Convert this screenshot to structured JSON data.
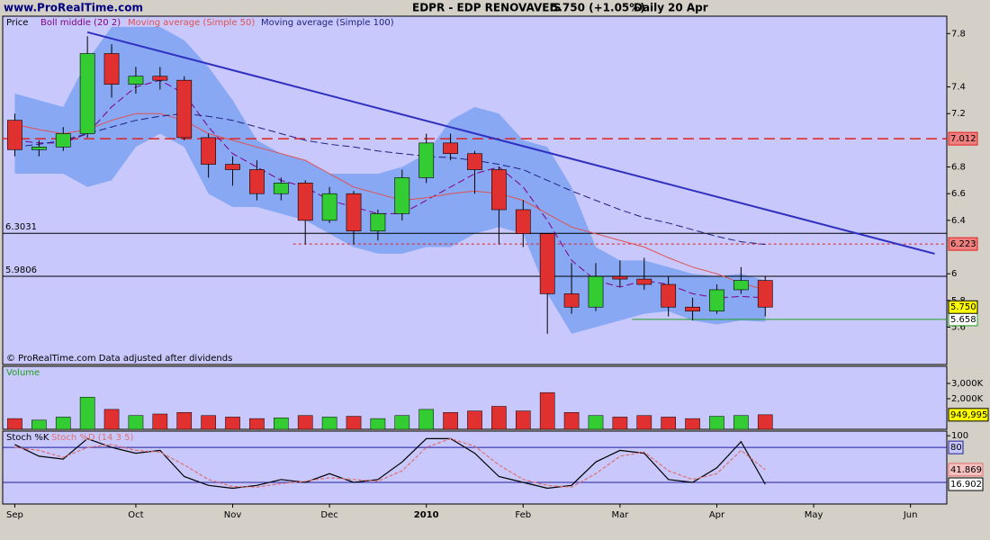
{
  "chart_data": {
    "type": "candlestick",
    "site": "www.ProRealTime.com",
    "title": "EDPR - EDP RENOVAVEIS",
    "quote": "5.750 (+1.05%)",
    "period": "Daily",
    "date": "20 Apr",
    "footnote": "© ProRealTime.com  Data adjusted after dividends",
    "categories": [
      "Sep",
      null,
      null,
      null,
      null,
      "Oct",
      null,
      null,
      null,
      "Nov",
      null,
      null,
      null,
      "Dec",
      null,
      null,
      null,
      "2010",
      null,
      null,
      null,
      "Feb",
      null,
      null,
      null,
      "Mar",
      null,
      null,
      null,
      "Apr",
      null,
      null,
      null,
      "May",
      null,
      null,
      null,
      "Jun",
      null
    ],
    "price": {
      "label": "Price",
      "up_color": "#33cc33",
      "down_color": "#e03030",
      "ylim": [
        5.32,
        7.93
      ],
      "yticks": [
        5.6,
        5.8,
        6,
        6.4,
        6.6,
        6.8,
        7.2,
        7.4,
        7.8
      ],
      "open": [
        7.15,
        6.93,
        6.95,
        7.05,
        7.65,
        7.42,
        7.48,
        7.45,
        7.02,
        6.82,
        6.78,
        6.6,
        6.68,
        6.4,
        6.6,
        6.32,
        6.45,
        6.72,
        6.98,
        6.9,
        6.78,
        6.48,
        6.3,
        5.85,
        5.75,
        5.98,
        5.96,
        5.92,
        5.75,
        5.72,
        5.88,
        5.95,
        null,
        null,
        null,
        null,
        null,
        null,
        null
      ],
      "high": [
        7.2,
        7.0,
        7.1,
        7.78,
        7.72,
        7.55,
        7.55,
        7.48,
        7.05,
        6.88,
        6.85,
        6.72,
        6.7,
        6.65,
        6.62,
        6.48,
        6.78,
        7.05,
        7.05,
        6.92,
        6.8,
        6.55,
        6.3,
        6.08,
        6.08,
        6.1,
        6.12,
        5.98,
        5.82,
        5.92,
        6.05,
        5.98,
        null,
        null,
        null,
        null,
        null,
        null,
        null
      ],
      "low": [
        6.88,
        6.88,
        6.92,
        7.02,
        7.32,
        7.35,
        7.38,
        7.0,
        6.72,
        6.66,
        6.55,
        6.55,
        6.22,
        6.38,
        6.22,
        6.25,
        6.4,
        6.68,
        6.85,
        6.6,
        6.22,
        6.2,
        5.55,
        5.7,
        5.72,
        5.9,
        5.88,
        5.68,
        5.65,
        5.7,
        5.85,
        5.68,
        null,
        null,
        null,
        null,
        null,
        null,
        null
      ],
      "close": [
        6.93,
        6.95,
        7.05,
        7.65,
        7.42,
        7.48,
        7.45,
        7.02,
        6.82,
        6.78,
        6.6,
        6.68,
        6.4,
        6.6,
        6.32,
        6.45,
        6.72,
        6.98,
        6.9,
        6.78,
        6.48,
        6.3,
        5.85,
        5.75,
        5.98,
        5.96,
        5.92,
        5.75,
        5.72,
        5.88,
        5.95,
        5.75,
        null,
        null,
        null,
        null,
        null,
        null,
        null
      ],
      "last_close": {
        "value": 5.75,
        "label": "5.750"
      },
      "band": {
        "color": "#88a8f4",
        "upper": [
          7.35,
          7.3,
          7.25,
          7.6,
          7.85,
          7.85,
          7.85,
          7.75,
          7.55,
          7.3,
          7.0,
          6.9,
          6.85,
          6.75,
          6.75,
          6.75,
          6.8,
          6.9,
          7.15,
          7.25,
          7.2,
          7.0,
          6.95,
          6.65,
          6.2,
          6.1,
          6.1,
          6.05,
          6.0,
          5.98,
          6.0,
          5.95,
          null,
          null,
          null,
          null,
          null,
          null,
          null
        ],
        "lower": [
          6.75,
          6.75,
          6.75,
          6.65,
          6.7,
          6.95,
          7.05,
          6.95,
          6.6,
          6.5,
          6.5,
          6.45,
          6.4,
          6.3,
          6.2,
          6.15,
          6.15,
          6.2,
          6.2,
          6.3,
          6.35,
          6.3,
          5.85,
          5.55,
          5.6,
          5.65,
          5.7,
          5.72,
          5.65,
          5.62,
          5.65,
          5.64,
          null,
          null,
          null,
          null,
          null,
          null,
          null
        ]
      },
      "overlays": [
        {
          "name": "Boll middle (20 2)",
          "color": "#800080",
          "dash": true,
          "values": [
            7.0,
            6.98,
            6.98,
            7.05,
            7.25,
            7.4,
            7.45,
            7.35,
            7.1,
            6.9,
            6.8,
            6.7,
            6.65,
            6.55,
            6.5,
            6.45,
            6.45,
            6.55,
            6.65,
            6.75,
            6.8,
            6.65,
            6.4,
            6.1,
            5.95,
            5.9,
            5.95,
            5.92,
            5.85,
            5.82,
            5.83,
            5.82,
            null,
            null,
            null,
            null,
            null,
            null,
            null
          ]
        },
        {
          "name": "Moving average (Simple 50)",
          "color": "#e05050",
          "dash": false,
          "values": [
            7.12,
            7.08,
            7.05,
            7.08,
            7.15,
            7.2,
            7.2,
            7.15,
            7.05,
            7.0,
            6.95,
            6.9,
            6.85,
            6.75,
            6.65,
            6.6,
            6.55,
            6.57,
            6.6,
            6.62,
            6.6,
            6.55,
            6.45,
            6.35,
            6.3,
            6.25,
            6.2,
            6.12,
            6.05,
            6.0,
            5.93,
            5.88,
            null,
            null,
            null,
            null,
            null,
            null,
            null
          ]
        },
        {
          "name": "Moving average (Simple 100)",
          "color": "#202080",
          "dash": true,
          "values": [
            6.95,
            6.97,
            7.0,
            7.05,
            7.1,
            7.15,
            7.18,
            7.2,
            7.18,
            7.15,
            7.1,
            7.05,
            7.0,
            6.97,
            6.95,
            6.92,
            6.9,
            6.88,
            6.87,
            6.85,
            6.82,
            6.78,
            6.7,
            6.62,
            6.55,
            6.48,
            6.42,
            6.38,
            6.33,
            6.28,
            6.24,
            6.22,
            null,
            null,
            null,
            null,
            null,
            null,
            null
          ]
        }
      ],
      "trendline": {
        "color": "#3030c0",
        "x": [
          3,
          38
        ],
        "values": [
          7.81,
          6.15
        ]
      },
      "levels": [
        {
          "value": 7.012,
          "color": "#e02020",
          "style": "dashed",
          "box": "#f08080",
          "start": 0,
          "side": "right"
        },
        {
          "value": 6.223,
          "color": "#e02020",
          "style": "dotted",
          "box": "#f08080",
          "start": 12,
          "side": "right"
        },
        {
          "value": 6.3031,
          "color": "#000000",
          "style": "solid",
          "box": "none",
          "start": 0,
          "side": "left"
        },
        {
          "value": 5.9806,
          "color": "#000000",
          "style": "solid",
          "box": "none",
          "start": 0,
          "side": "left"
        },
        {
          "value": 5.658,
          "color": "#20a020",
          "style": "solid",
          "box": "#ffffff",
          "start": 26,
          "side": "right"
        }
      ]
    },
    "volume": {
      "label": "Volume",
      "color": "#20a020",
      "ylim": [
        0,
        4118000
      ],
      "yticks": [
        {
          "value": 2000000,
          "label": "2,000K"
        },
        {
          "value": 3000000,
          "label": "3,000K"
        }
      ],
      "values": [
        700000,
        600000,
        800000,
        2100000,
        1300000,
        900000,
        1000000,
        1100000,
        900000,
        800000,
        700000,
        750000,
        900000,
        800000,
        850000,
        700000,
        900000,
        1300000,
        1100000,
        1200000,
        1500000,
        1200000,
        2400000,
        1100000,
        900000,
        800000,
        900000,
        800000,
        700000,
        850000,
        900000,
        949995,
        null,
        null,
        null,
        null,
        null,
        null,
        null
      ],
      "last": {
        "value": 949995,
        "label": "949,995"
      }
    },
    "stochastic": {
      "ylim": [
        -17,
        108
      ],
      "yticks": [
        100
      ],
      "levels": [
        80,
        20
      ],
      "series": [
        {
          "name": "Stoch %K",
          "color": "#000000",
          "values": [
            85,
            65,
            60,
            95,
            80,
            70,
            75,
            30,
            15,
            10,
            15,
            25,
            20,
            35,
            20,
            25,
            55,
            95,
            95,
            70,
            30,
            20,
            10,
            15,
            55,
            75,
            70,
            25,
            20,
            45,
            90,
            16.902,
            null,
            null,
            null,
            null,
            null,
            null,
            null
          ]
        },
        {
          "name": "Stoch %D (14 3 5)",
          "color": "#e07070",
          "values": [
            80,
            75,
            63,
            80,
            85,
            75,
            72,
            50,
            25,
            13,
            12,
            18,
            22,
            28,
            25,
            22,
            40,
            80,
            95,
            82,
            50,
            25,
            15,
            12,
            35,
            65,
            72,
            40,
            25,
            35,
            75,
            41.869,
            null,
            null,
            null,
            null,
            null,
            null,
            null
          ]
        }
      ]
    }
  }
}
